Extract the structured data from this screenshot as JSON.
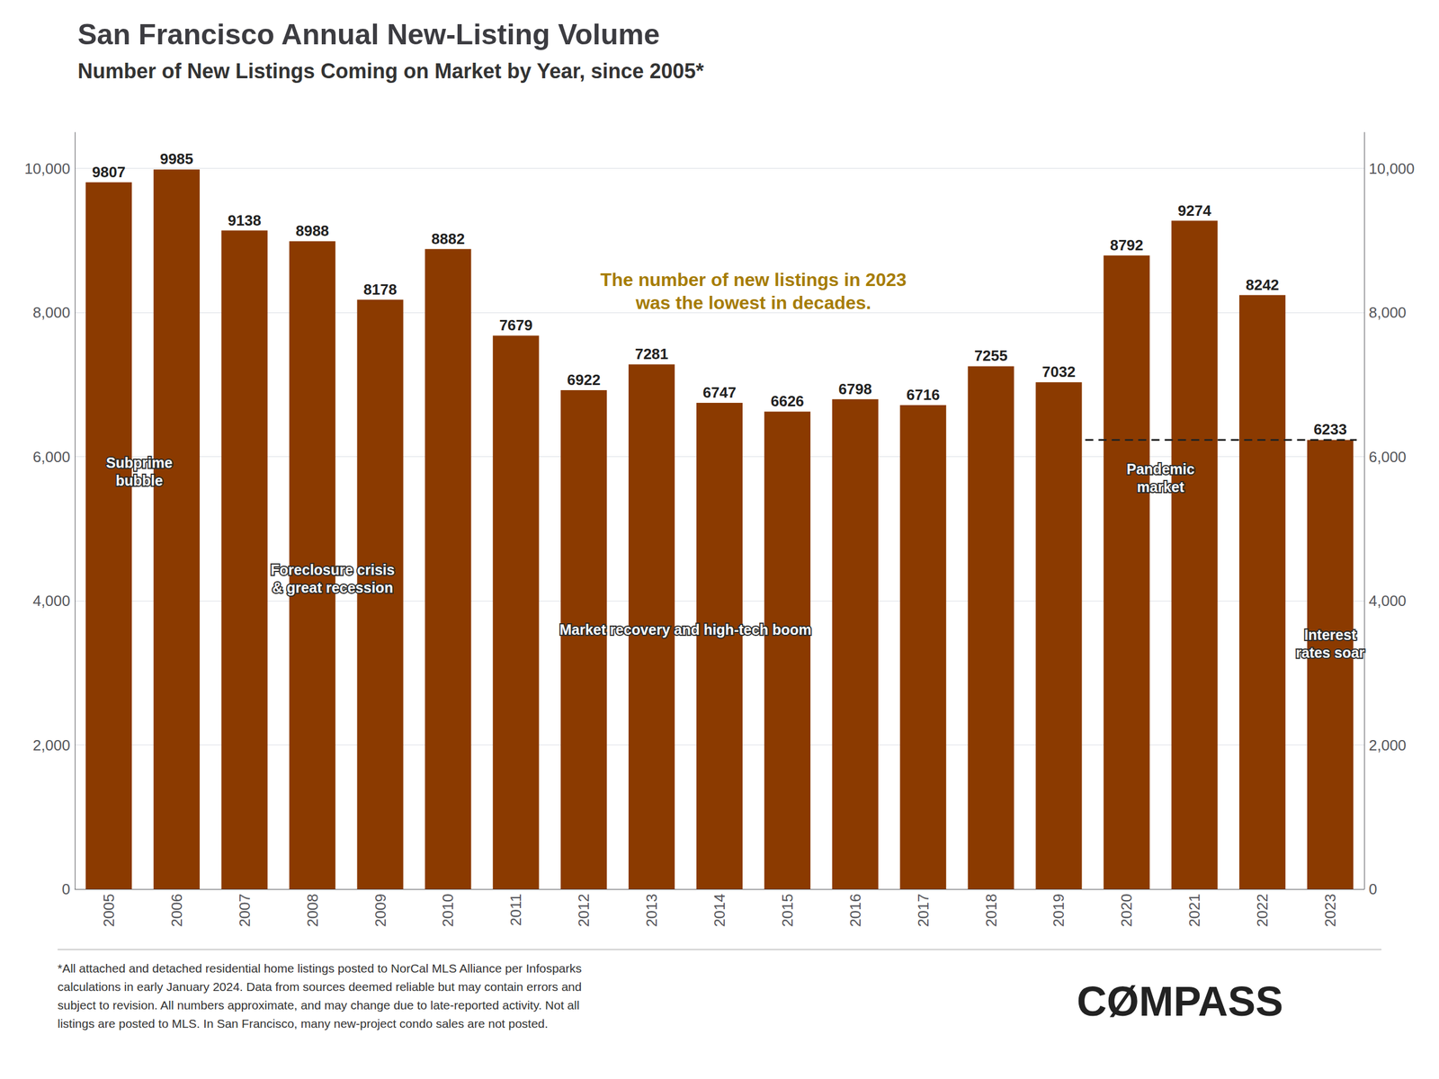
{
  "chart_data": {
    "type": "bar",
    "title": "San Francisco Annual New-Listing Volume",
    "subtitle": "Number of New Listings Coming on Market by Year, since 2005*",
    "categories": [
      "2005",
      "2006",
      "2007",
      "2008",
      "2009",
      "2010",
      "2011",
      "2012",
      "2013",
      "2014",
      "2015",
      "2016",
      "2017",
      "2018",
      "2019",
      "2020",
      "2021",
      "2022",
      "2023"
    ],
    "values": [
      9807,
      9985,
      9138,
      8988,
      8178,
      8882,
      7679,
      6922,
      7281,
      6747,
      6626,
      6798,
      6716,
      7255,
      7032,
      8792,
      9274,
      8242,
      6233
    ],
    "color": "#8B3A00",
    "ylim": [
      0,
      10500
    ],
    "yticks": [
      0,
      {
        "value": 2000,
        "label": "2,000"
      },
      {
        "value": 4000,
        "label": "4,000"
      },
      {
        "value": 6000,
        "label": "6,000"
      },
      {
        "value": 8000,
        "label": "8,000"
      },
      {
        "value": 10000,
        "label": "10,000"
      }
    ],
    "grid": true,
    "data_labels": true,
    "reference_line": {
      "value": 6233,
      "from": "2019",
      "to": "2023",
      "line_style": "dashed"
    },
    "annotations": [
      {
        "text": "Subprime\nbubble",
        "category": "2005"
      },
      {
        "text": "Foreclosure crisis\n& great recession",
        "category": "2008"
      },
      {
        "text": "Market recovery and high-tech boom",
        "category": "2013"
      },
      {
        "text": "Pandemic\nmarket",
        "category": "2020"
      },
      {
        "text": "Interest\nrates soar",
        "category": "2023"
      }
    ],
    "highlight": {
      "text": "The number of new listings in 2023\nwas the lowest in decades.",
      "category": "2014"
    },
    "footnote": [
      "*All attached and detached residential home listings posted to NorCal MLS Alliance per Infosparks",
      "calculations in early January 2024. Data from sources deemed reliable but may contain errors and",
      "subject to revision. All numbers approximate, and may change due to late-reported activity. Not all",
      "listings are posted to MLS. In San Francisco, many new-project condo sales are not posted."
    ],
    "logo": "CØMPASS"
  }
}
